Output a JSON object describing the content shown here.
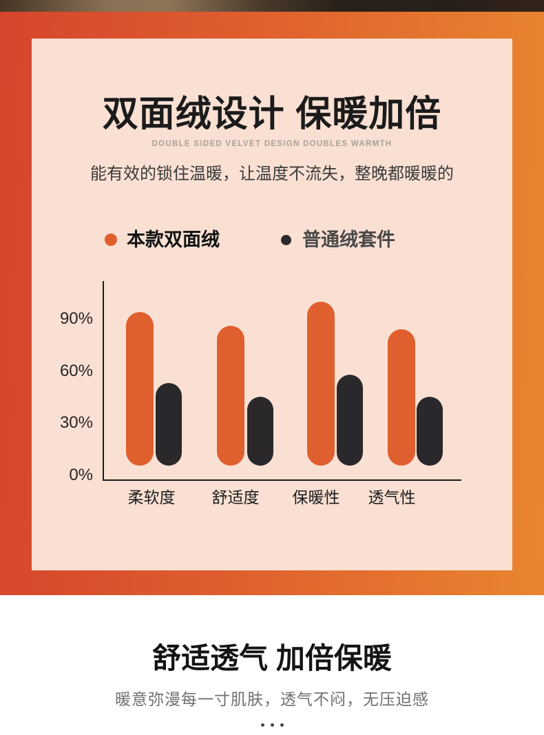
{
  "card": {
    "title": "双面绒设计 保暖加倍",
    "subtitle_en": "DOUBLE SIDED VELVET DESIGN DOUBLES WARMTH",
    "description": "能有效的锁住温暖，让温度不流失，整晚都暖暖的"
  },
  "chart_data": {
    "type": "bar",
    "categories": [
      "柔软度",
      "舒适度",
      "保暖性",
      "透气性"
    ],
    "series": [
      {
        "name": "本款双面绒",
        "color": "#e05f2e",
        "values": [
          94,
          86,
          100,
          84
        ]
      },
      {
        "name": "普通绒套件",
        "color": "#2a282a",
        "values": [
          53,
          45,
          58,
          45
        ]
      }
    ],
    "yticks": [
      "90%",
      "60%",
      "30%",
      "0%"
    ],
    "ytick_values": [
      90,
      60,
      30,
      0
    ],
    "ylim": [
      0,
      105
    ],
    "grid": false,
    "legend_position": "top",
    "title": "",
    "xlabel": "",
    "ylabel": ""
  },
  "bottom": {
    "title": "舒适透气 加倍保暖",
    "subtitle": "暖意弥漫每一寸肌肤，透气不闷，无压迫感",
    "pager_dots": 3
  },
  "colors": {
    "accent_orange": "#e05f2e",
    "bar_black": "#2a282a",
    "card_bg": "#f9e0d3",
    "gradient_left": "#d6452c",
    "gradient_right": "#e8852f"
  }
}
